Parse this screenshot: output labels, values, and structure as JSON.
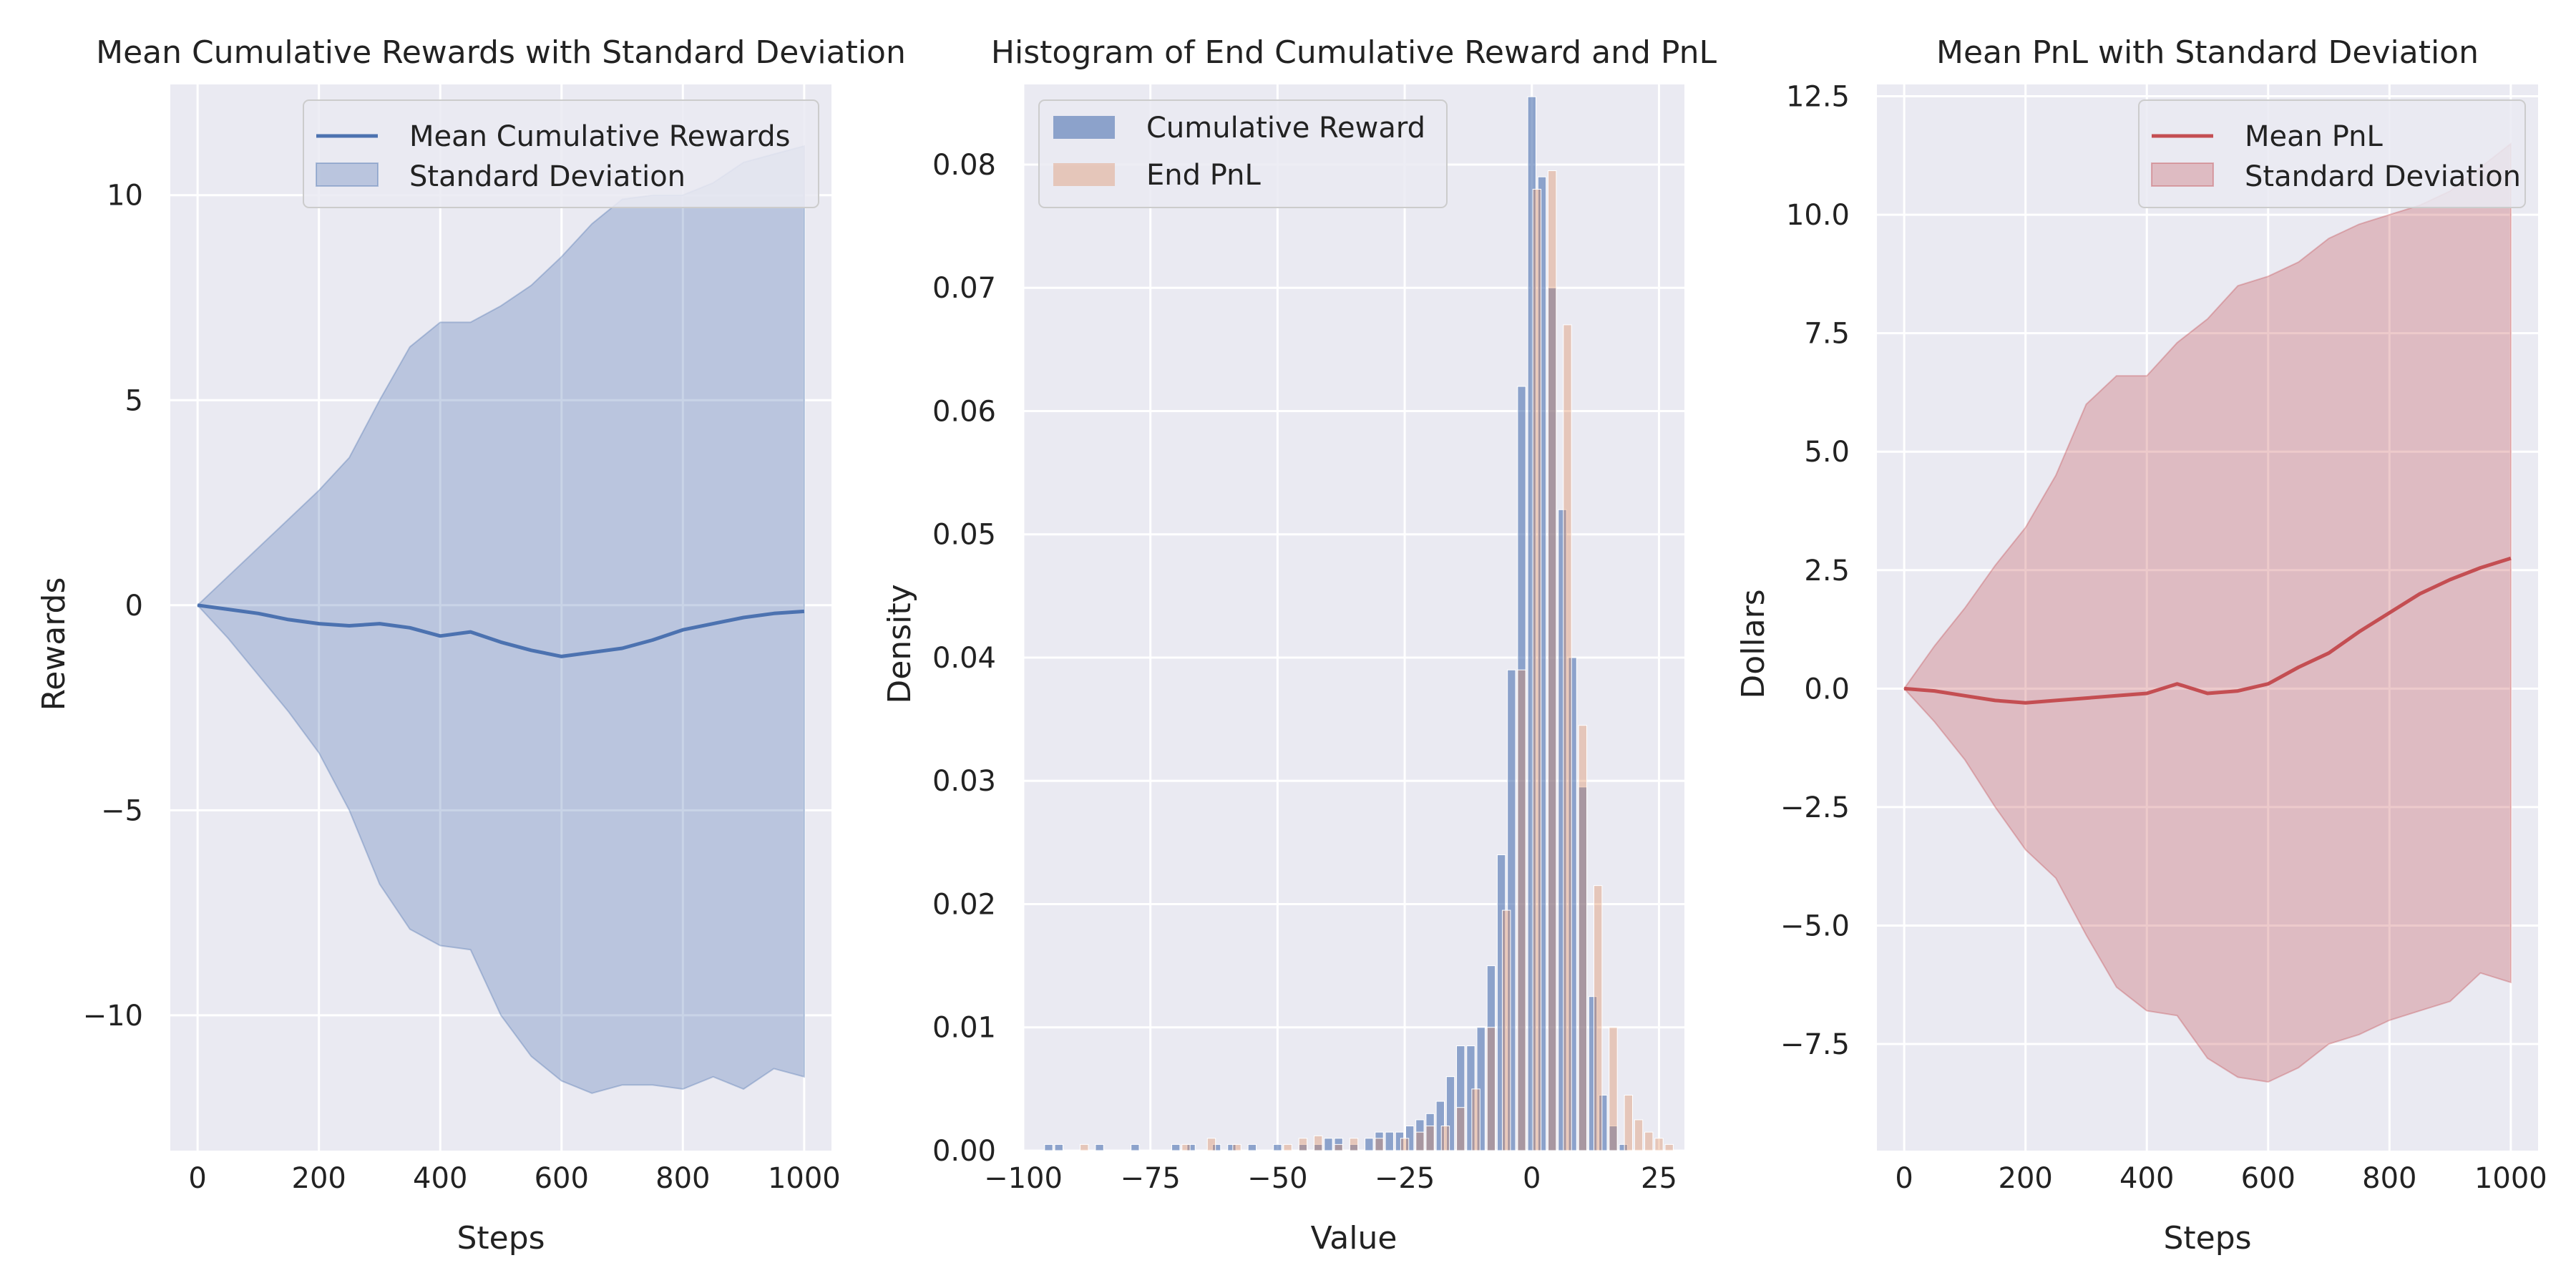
{
  "chart_data": [
    {
      "type": "area",
      "title": "Mean Cumulative Rewards with Standard Deviation",
      "xlabel": "Steps",
      "ylabel": "Rewards",
      "xlim": [
        -45,
        1045
      ],
      "ylim": [
        -13.3,
        12.7
      ],
      "xticks": [
        0,
        200,
        400,
        600,
        800,
        1000
      ],
      "yticks": [
        -10,
        -5,
        0,
        5,
        10
      ],
      "ytick_labels": [
        "−10",
        "−5",
        "0",
        "5",
        "10"
      ],
      "grid": true,
      "legend_position": "top-right",
      "colors": {
        "line": "#4c72b0",
        "band": "#4c72b0"
      },
      "series": [
        {
          "name": "Mean Cumulative Rewards",
          "x": [
            0,
            50,
            100,
            150,
            200,
            250,
            300,
            350,
            400,
            450,
            500,
            550,
            600,
            650,
            700,
            750,
            800,
            850,
            900,
            950,
            1000
          ],
          "values": [
            0,
            -0.1,
            -0.2,
            -0.35,
            -0.45,
            -0.5,
            -0.45,
            -0.55,
            -0.75,
            -0.65,
            -0.9,
            -1.1,
            -1.25,
            -1.15,
            -1.05,
            -0.85,
            -0.6,
            -0.45,
            -0.3,
            -0.2,
            -0.15
          ]
        },
        {
          "name": "Standard Deviation",
          "x": [
            0,
            50,
            100,
            150,
            200,
            250,
            300,
            350,
            400,
            450,
            500,
            550,
            600,
            650,
            700,
            750,
            800,
            850,
            900,
            950,
            1000
          ],
          "lower": [
            0,
            -0.8,
            -1.7,
            -2.6,
            -3.6,
            -5.0,
            -6.8,
            -7.9,
            -8.3,
            -8.4,
            -10.0,
            -11.0,
            -11.6,
            -11.9,
            -11.7,
            -11.7,
            -11.8,
            -11.5,
            -11.8,
            -11.3,
            -11.5
          ],
          "upper": [
            0,
            0.7,
            1.4,
            2.1,
            2.8,
            3.6,
            5.0,
            6.3,
            6.9,
            6.9,
            7.3,
            7.8,
            8.5,
            9.3,
            9.9,
            10.0,
            10.0,
            10.3,
            10.8,
            11.0,
            11.2
          ]
        }
      ]
    },
    {
      "type": "bar",
      "title": "Histogram of End Cumulative Reward and PnL",
      "xlabel": "Value",
      "ylabel": "Density",
      "xlim": [
        -100,
        30
      ],
      "ylim": [
        0,
        0.0865
      ],
      "xticks": [
        -100,
        -75,
        -50,
        -25,
        0,
        25
      ],
      "xtick_labels": [
        "−100",
        "−75",
        "−50",
        "−25",
        "0",
        "25"
      ],
      "yticks": [
        0,
        0.01,
        0.02,
        0.03,
        0.04,
        0.05,
        0.06,
        0.07,
        0.08
      ],
      "ytick_labels": [
        "0.00",
        "0.01",
        "0.02",
        "0.03",
        "0.04",
        "0.05",
        "0.06",
        "0.07",
        "0.08"
      ],
      "grid": true,
      "legend_position": "top-left",
      "colors": {
        "Cumulative Reward": "#4c72b0",
        "End PnL": "#dd8452"
      },
      "series": [
        {
          "name": "Cumulative Reward",
          "x": [
            -95,
            -93,
            -85,
            -78,
            -70,
            -67,
            -62,
            -59,
            -55,
            -50,
            -45,
            -42,
            -40,
            -38,
            -35,
            -32,
            -30,
            -28,
            -26,
            -24,
            -22,
            -20,
            -18,
            -16,
            -14,
            -12,
            -10,
            -8,
            -6,
            -4,
            -2,
            0,
            2,
            4,
            6,
            8,
            10,
            12,
            14,
            16,
            18
          ],
          "values": [
            0.0005,
            0.0005,
            0.0005,
            0.0005,
            0.0005,
            0.0005,
            0.0005,
            0.0005,
            0.0005,
            0.0005,
            0.0005,
            0.0005,
            0.001,
            0.001,
            0.0005,
            0.001,
            0.0015,
            0.0015,
            0.0015,
            0.002,
            0.0025,
            0.003,
            0.004,
            0.006,
            0.0085,
            0.0085,
            0.01,
            0.015,
            0.024,
            0.039,
            0.062,
            0.0855,
            0.079,
            0.07,
            0.052,
            0.04,
            0.0295,
            0.0125,
            0.0045,
            0.002,
            0.0005
          ]
        },
        {
          "name": "End PnL",
          "x": [
            -88,
            -68,
            -63,
            -58,
            -48,
            -45,
            -42,
            -38,
            -35,
            -30,
            -25,
            -22,
            -20,
            -17,
            -14,
            -11,
            -8,
            -5,
            -2,
            1,
            4,
            7,
            10,
            13,
            16,
            19,
            21,
            23,
            25,
            27
          ],
          "values": [
            0.0005,
            0.0005,
            0.001,
            0.0005,
            0.0005,
            0.001,
            0.0012,
            0.0005,
            0.001,
            0.001,
            0.001,
            0.0015,
            0.002,
            0.002,
            0.0035,
            0.005,
            0.01,
            0.0195,
            0.039,
            0.078,
            0.0795,
            0.067,
            0.0345,
            0.0215,
            0.01,
            0.0045,
            0.0025,
            0.0015,
            0.001,
            0.0005
          ]
        }
      ]
    },
    {
      "type": "area",
      "title": "Mean PnL with Standard Deviation",
      "xlabel": "Steps",
      "ylabel": "Dollars",
      "xlim": [
        -45,
        1045
      ],
      "ylim": [
        -9.75,
        12.75
      ],
      "xticks": [
        0,
        200,
        400,
        600,
        800,
        1000
      ],
      "yticks": [
        -7.5,
        -5.0,
        -2.5,
        0.0,
        2.5,
        5.0,
        7.5,
        10.0,
        12.5
      ],
      "ytick_labels": [
        "−7.5",
        "−5.0",
        "−2.5",
        "0.0",
        "2.5",
        "5.0",
        "7.5",
        "10.0",
        "12.5"
      ],
      "grid": true,
      "legend_position": "top-right",
      "colors": {
        "line": "#c44e52",
        "band": "#c44e52"
      },
      "series": [
        {
          "name": "Mean PnL",
          "x": [
            0,
            50,
            100,
            150,
            200,
            250,
            300,
            350,
            400,
            450,
            500,
            550,
            600,
            650,
            700,
            750,
            800,
            850,
            900,
            950,
            1000
          ],
          "values": [
            0,
            -0.05,
            -0.15,
            -0.25,
            -0.3,
            -0.25,
            -0.2,
            -0.15,
            -0.1,
            0.1,
            -0.1,
            -0.05,
            0.1,
            0.45,
            0.75,
            1.2,
            1.6,
            2.0,
            2.3,
            2.55,
            2.75
          ]
        },
        {
          "name": "Standard Deviation",
          "x": [
            0,
            50,
            100,
            150,
            200,
            250,
            300,
            350,
            400,
            450,
            500,
            550,
            600,
            650,
            700,
            750,
            800,
            850,
            900,
            950,
            1000
          ],
          "lower": [
            0,
            -0.7,
            -1.5,
            -2.5,
            -3.4,
            -4.0,
            -5.2,
            -6.3,
            -6.8,
            -6.9,
            -7.8,
            -8.2,
            -8.3,
            -8.0,
            -7.5,
            -7.3,
            -7.0,
            -6.8,
            -6.6,
            -6.0,
            -6.2
          ],
          "upper": [
            0,
            0.9,
            1.7,
            2.6,
            3.4,
            4.5,
            6.0,
            6.6,
            6.6,
            7.3,
            7.8,
            8.5,
            8.7,
            9.0,
            9.5,
            9.8,
            10.0,
            10.2,
            10.5,
            11.0,
            11.5
          ]
        }
      ]
    }
  ]
}
